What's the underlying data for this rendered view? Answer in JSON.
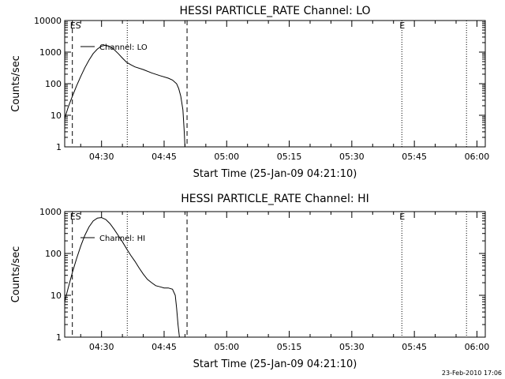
{
  "footer": {
    "timestamp": "23-Feb-2010 17:06"
  },
  "chart_data": [
    {
      "type": "line",
      "title": "HESSI PARTICLE_RATE Channel: LO",
      "xlabel": "Start Time (25-Jan-09 04:21:10)",
      "ylabel": "Counts/sec",
      "yscale": "log",
      "xlim": [
        "04:21:10",
        "06:02:00"
      ],
      "ylim": [
        1,
        10000
      ],
      "xticks": [
        "04:30",
        "04:45",
        "05:00",
        "05:15",
        "05:30",
        "05:45",
        "06:00"
      ],
      "yticks": [
        "1",
        "10",
        "100",
        "1000",
        "10000"
      ],
      "legend": {
        "label": "Channel: LO",
        "placement": "top-left"
      },
      "markers": [
        {
          "time": "04:23:00",
          "style": "dashed",
          "label": "ES"
        },
        {
          "time": "04:36:10",
          "style": "dotted",
          "label": ""
        },
        {
          "time": "04:50:30",
          "style": "dashed",
          "label": ""
        },
        {
          "time": "05:42:00",
          "style": "dotted",
          "label": "E"
        },
        {
          "time": "05:57:30",
          "style": "dotted",
          "label": ""
        }
      ],
      "series": [
        {
          "name": "Channel: LO",
          "x": [
            "04:21:10",
            "04:22:00",
            "04:23:00",
            "04:24:00",
            "04:25:00",
            "04:26:00",
            "04:27:00",
            "04:28:00",
            "04:29:00",
            "04:30:00",
            "04:31:00",
            "04:32:00",
            "04:33:00",
            "04:34:00",
            "04:35:00",
            "04:36:00",
            "04:37:00",
            "04:38:00",
            "04:40:00",
            "04:42:00",
            "04:44:00",
            "04:46:00",
            "04:47:00",
            "04:48:00",
            "04:48:30",
            "04:49:00",
            "04:49:30",
            "04:49:50",
            "04:50:00"
          ],
          "y": [
            8,
            18,
            40,
            85,
            170,
            320,
            560,
            900,
            1250,
            1550,
            1650,
            1500,
            1200,
            900,
            650,
            480,
            400,
            340,
            280,
            220,
            180,
            150,
            130,
            100,
            70,
            40,
            15,
            3,
            1
          ]
        }
      ]
    },
    {
      "type": "line",
      "title": "HESSI PARTICLE_RATE Channel: HI",
      "xlabel": "Start Time (25-Jan-09 04:21:10)",
      "ylabel": "Counts/sec",
      "yscale": "log",
      "xlim": [
        "04:21:10",
        "06:02:00"
      ],
      "ylim": [
        1,
        1000
      ],
      "xticks": [
        "04:30",
        "04:45",
        "05:00",
        "05:15",
        "05:30",
        "05:45",
        "06:00"
      ],
      "yticks": [
        "1",
        "10",
        "100",
        "1000"
      ],
      "legend": {
        "label": "Channel: HI",
        "placement": "top-left"
      },
      "markers": [
        {
          "time": "04:23:00",
          "style": "dashed",
          "label": "ES"
        },
        {
          "time": "04:36:10",
          "style": "dotted",
          "label": ""
        },
        {
          "time": "04:50:30",
          "style": "dashed",
          "label": ""
        },
        {
          "time": "05:42:00",
          "style": "dotted",
          "label": "E"
        },
        {
          "time": "05:57:30",
          "style": "dotted",
          "label": ""
        }
      ],
      "series": [
        {
          "name": "Channel: HI",
          "x": [
            "04:21:10",
            "04:22:00",
            "04:23:00",
            "04:24:00",
            "04:25:00",
            "04:26:00",
            "04:27:00",
            "04:28:00",
            "04:29:00",
            "04:30:00",
            "04:31:00",
            "04:32:00",
            "04:33:00",
            "04:34:00",
            "04:35:00",
            "04:36:00",
            "04:37:00",
            "04:38:00",
            "04:39:00",
            "04:40:00",
            "04:41:00",
            "04:42:00",
            "04:43:00",
            "04:44:00",
            "04:45:00",
            "04:46:00",
            "04:47:00",
            "04:47:40",
            "04:48:00",
            "04:48:20",
            "04:48:40"
          ],
          "y": [
            7,
            15,
            35,
            75,
            150,
            270,
            430,
            600,
            700,
            720,
            650,
            520,
            380,
            270,
            190,
            130,
            90,
            65,
            45,
            32,
            24,
            20,
            17,
            16,
            15,
            15,
            14,
            10,
            5,
            2,
            1
          ]
        }
      ]
    }
  ]
}
